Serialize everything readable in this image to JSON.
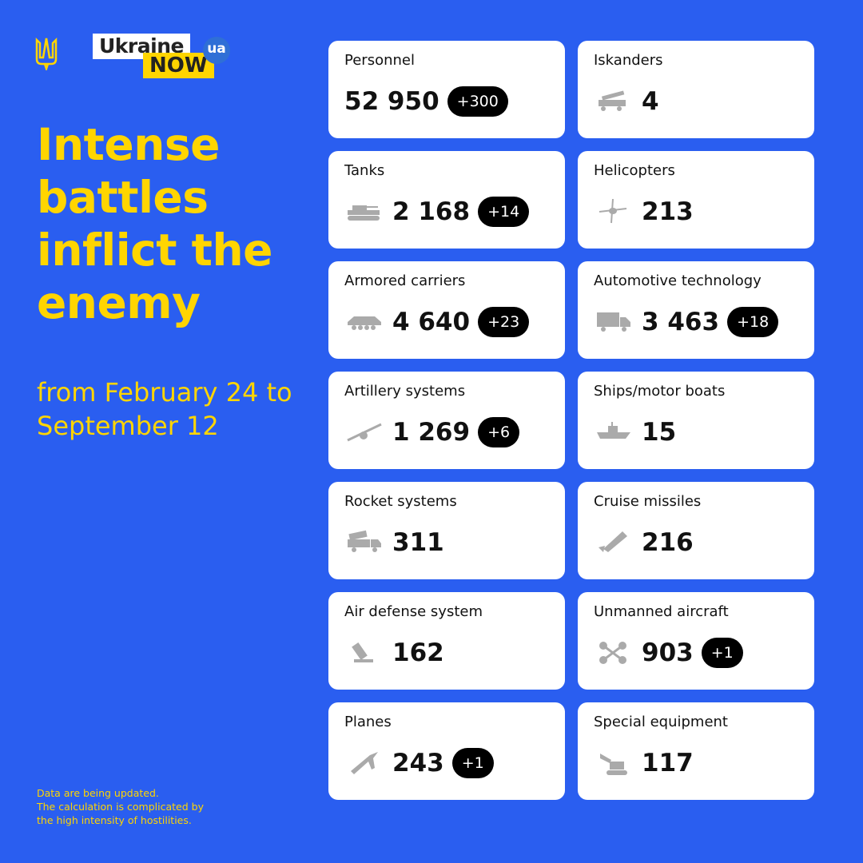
{
  "logo": {
    "line1": "Ukraine",
    "line2": "NOW",
    "badge": "ua"
  },
  "title": "Intense battles inflict the enemy",
  "period": "from February 24 to September 12",
  "note": [
    "Data are being updated.",
    "The calculation is complicated by",
    "the high intensity of hostilities."
  ],
  "colors": {
    "background": "#2a5ef0",
    "accent": "#ffd500",
    "card": "#ffffff",
    "badge": "#000000",
    "icon": "#aaaaaa"
  },
  "stats": [
    {
      "label": "Personnel",
      "value": "52 950",
      "delta": "+300",
      "icon": ""
    },
    {
      "label": "Iskanders",
      "value": "4",
      "delta": "",
      "icon": "iskander-launcher-icon"
    },
    {
      "label": "Tanks",
      "value": "2 168",
      "delta": "+14",
      "icon": "tank-icon"
    },
    {
      "label": "Helicopters",
      "value": "213",
      "delta": "",
      "icon": "helicopter-icon"
    },
    {
      "label": "Armored carriers",
      "value": "4 640",
      "delta": "+23",
      "icon": "armored-carrier-icon"
    },
    {
      "label": "Automotive technology",
      "value": "3 463",
      "delta": "+18",
      "icon": "truck-icon"
    },
    {
      "label": "Artillery systems",
      "value": "1 269",
      "delta": "+6",
      "icon": "artillery-icon"
    },
    {
      "label": "Ships/motor boats",
      "value": "15",
      "delta": "",
      "icon": "ship-icon"
    },
    {
      "label": "Rocket systems",
      "value": "311",
      "delta": "",
      "icon": "rocket-launcher-icon"
    },
    {
      "label": "Cruise missiles",
      "value": "216",
      "delta": "",
      "icon": "missile-icon"
    },
    {
      "label": "Air defense system",
      "value": "162",
      "delta": "",
      "icon": "air-defense-icon"
    },
    {
      "label": "Unmanned aircraft",
      "value": "903",
      "delta": "+1",
      "icon": "drone-icon"
    },
    {
      "label": "Planes",
      "value": "243",
      "delta": "+1",
      "icon": "plane-icon"
    },
    {
      "label": "Special equipment",
      "value": "117",
      "delta": "",
      "icon": "excavator-icon"
    }
  ]
}
